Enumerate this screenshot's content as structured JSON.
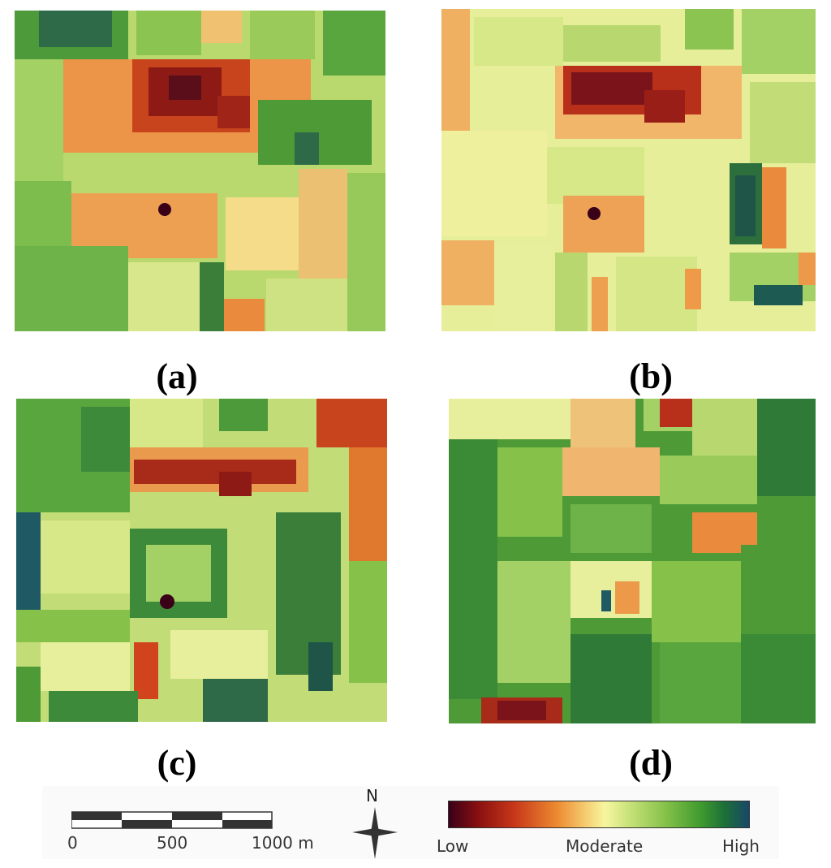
{
  "panels": [
    {
      "caption": "(a)"
    },
    {
      "caption": "(b)"
    },
    {
      "caption": "(c)"
    },
    {
      "caption": "(d)"
    }
  ],
  "scale_bar": {
    "ticks": [
      "0",
      "500",
      "1000 m"
    ]
  },
  "north_arrow": {
    "label": "N",
    "icon": "compass-star-icon"
  },
  "color_ramp": {
    "labels": [
      "Low",
      "Moderate",
      "High"
    ],
    "colors": [
      "#3a0018",
      "#8a1010",
      "#c8381a",
      "#ec8a30",
      "#f6cf74",
      "#f7f6a0",
      "#c8e27a",
      "#86c24a",
      "#3f9a2e",
      "#1c6e38",
      "#18476a"
    ]
  }
}
